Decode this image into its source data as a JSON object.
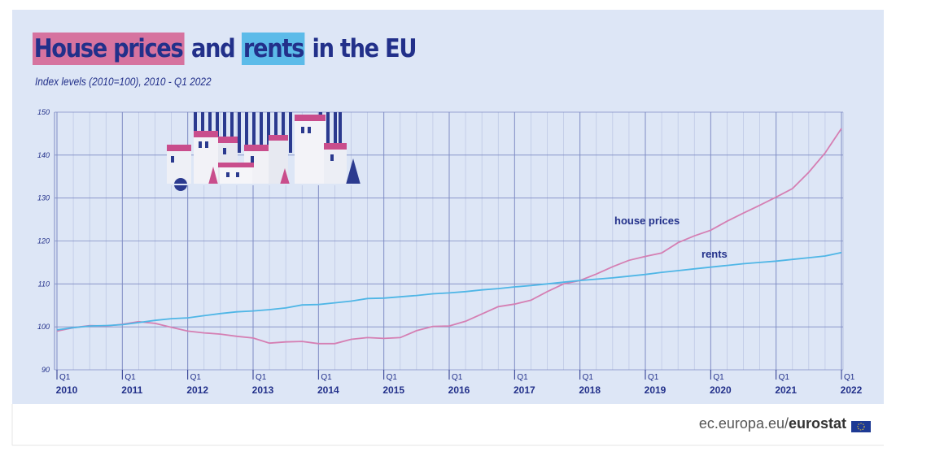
{
  "chart_data": {
    "type": "line",
    "title": [
      "House prices",
      "and",
      "rents",
      "in the EU"
    ],
    "subtitle": "Index levels (2010=100), 2010 - Q1 2022",
    "quarter_label": "Q1",
    "categories": [
      "2010",
      null,
      null,
      null,
      "2011",
      null,
      null,
      null,
      "2012",
      null,
      null,
      null,
      "2013",
      null,
      null,
      null,
      "2014",
      null,
      null,
      null,
      "2015",
      null,
      null,
      null,
      "2016",
      null,
      null,
      null,
      "2017",
      null,
      null,
      null,
      "2018",
      null,
      null,
      null,
      "2019",
      null,
      null,
      null,
      "2020",
      null,
      null,
      null,
      "2021",
      null,
      null,
      null,
      "2022"
    ],
    "series": [
      {
        "name": "house prices",
        "color": "#d57fb3",
        "values": [
          99.0,
          99.8,
          100.3,
          100.2,
          100.6,
          101.2,
          100.8,
          99.9,
          99.0,
          98.6,
          98.3,
          97.8,
          97.4,
          96.2,
          96.5,
          96.6,
          96.1,
          96.1,
          97.1,
          97.5,
          97.3,
          97.5,
          99.1,
          100.1,
          100.2,
          101.3,
          103.0,
          104.7,
          105.3,
          106.2,
          108.2,
          110.0,
          110.8,
          112.3,
          114.0,
          115.5,
          116.4,
          117.2,
          119.6,
          121.2,
          122.5,
          124.6,
          126.5,
          128.3,
          130.2,
          132.2,
          136.0,
          140.5,
          146.2
        ]
      },
      {
        "name": "rents",
        "color": "#4fb6e6",
        "values": [
          99.3,
          99.8,
          100.2,
          100.3,
          100.5,
          101.0,
          101.5,
          101.9,
          102.1,
          102.6,
          103.1,
          103.5,
          103.7,
          104.0,
          104.4,
          105.1,
          105.2,
          105.6,
          106.0,
          106.6,
          106.7,
          107.0,
          107.3,
          107.7,
          107.9,
          108.2,
          108.6,
          108.9,
          109.3,
          109.6,
          110.0,
          110.4,
          110.8,
          111.1,
          111.4,
          111.8,
          112.2,
          112.7,
          113.1,
          113.5,
          113.9,
          114.3,
          114.7,
          115.0,
          115.3,
          115.7,
          116.1,
          116.5,
          117.3
        ]
      }
    ],
    "ylim": [
      90,
      150
    ],
    "yticks": [
      90,
      100,
      110,
      120,
      130,
      140,
      150
    ],
    "grid": true,
    "source": [
      "ec.europa.eu/",
      "eurostat"
    ]
  }
}
